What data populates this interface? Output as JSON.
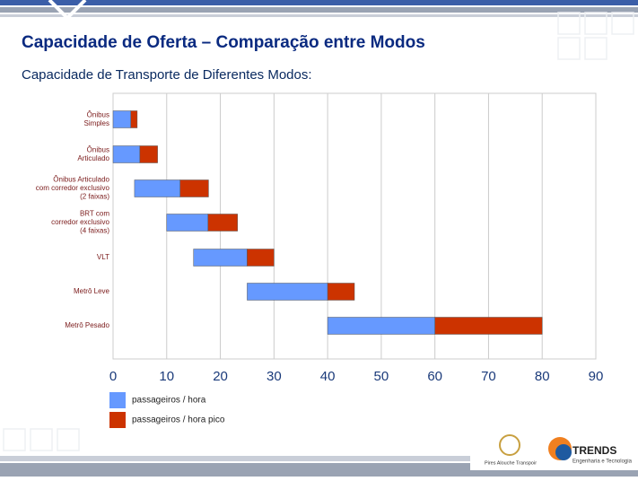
{
  "slide": {
    "title": "Capacidade de Oferta – Comparação entre Modos",
    "subtitle": "Capacidade de Transporte de Diferentes Modos:"
  },
  "chart_data": {
    "type": "floating-bar",
    "orientation": "horizontal",
    "categories": [
      [
        "Ônibus",
        "Simples"
      ],
      [
        "Ônibus",
        "Articulado"
      ],
      [
        "Ônibus Articulado",
        "com corredor exclusivo",
        "(2 faixas)"
      ],
      [
        "BRT com",
        "corredor exclusivo",
        "(4 faixas)"
      ],
      [
        "VLT"
      ],
      [
        "Metrô Leve"
      ],
      [
        "Metrô Pesado"
      ]
    ],
    "base": [
      0,
      0,
      4,
      10,
      15,
      25,
      40
    ],
    "series": [
      {
        "name": "passageiros / hora",
        "color": "#6699ff",
        "values": [
          3.3,
          5,
          8.5,
          7.7,
          10,
          15,
          20
        ]
      },
      {
        "name": "passageiros / hora pico",
        "color": "#cc3300",
        "values": [
          1.2,
          3.3,
          5.3,
          5.5,
          5,
          5,
          20
        ]
      }
    ],
    "xlim": [
      0,
      90
    ],
    "xticks": [
      0,
      10,
      20,
      30,
      40,
      50,
      60,
      70,
      80,
      90
    ],
    "grid": true
  },
  "footer": {
    "logo1": "Pires Alouche Transpoir",
    "logo2": "TRENDS",
    "logo2_sub": "Engenharia e Tecnologia"
  }
}
